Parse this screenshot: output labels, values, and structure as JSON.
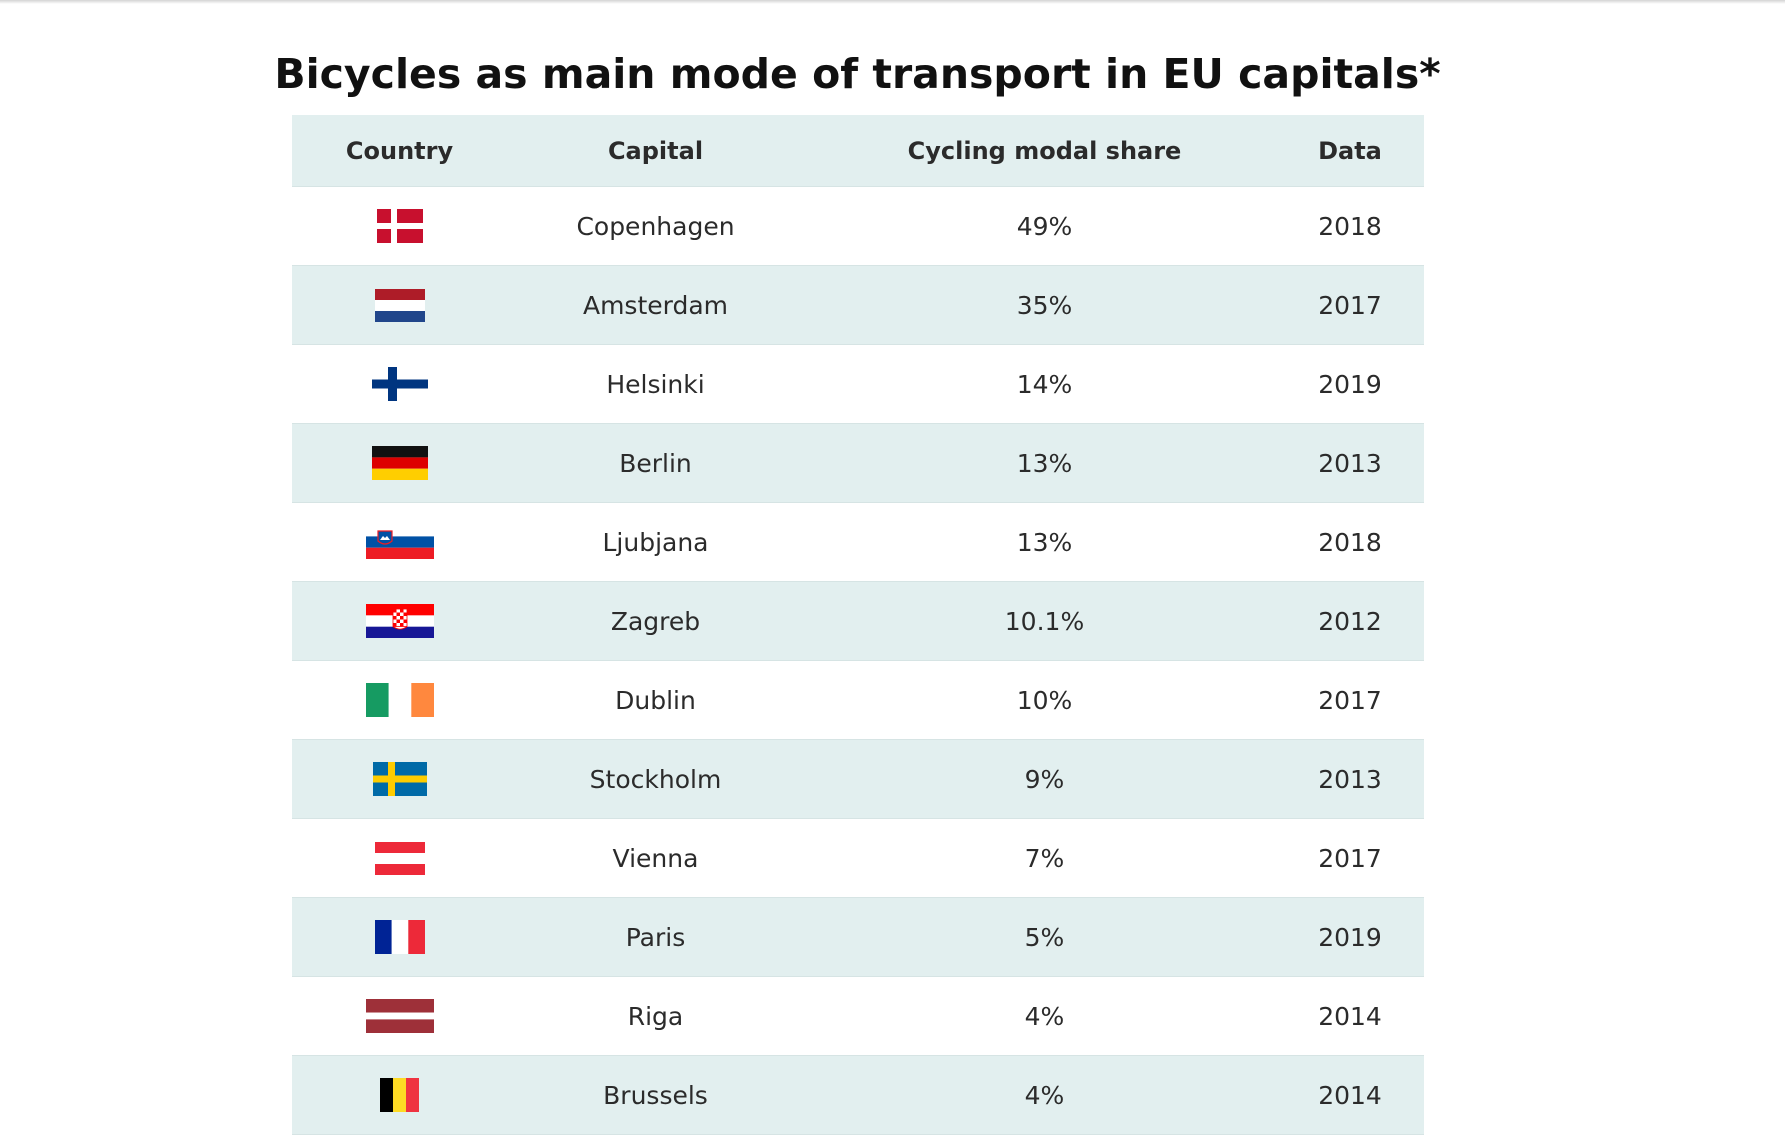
{
  "chart_data": {
    "type": "table",
    "title": "Bicycles as main mode of transport in EU capitals*",
    "columns": [
      "Country",
      "Capital",
      "Cycling modal share",
      "Data"
    ],
    "rows": [
      {
        "country_flag": "denmark",
        "capital": "Copenhagen",
        "share": "49%",
        "share_value": 49,
        "year": "2018"
      },
      {
        "country_flag": "netherlands",
        "capital": "Amsterdam",
        "share": "35%",
        "share_value": 35,
        "year": "2017"
      },
      {
        "country_flag": "finland",
        "capital": "Helsinki",
        "share": "14%",
        "share_value": 14,
        "year": "2019"
      },
      {
        "country_flag": "germany",
        "capital": "Berlin",
        "share": "13%",
        "share_value": 13,
        "year": "2013"
      },
      {
        "country_flag": "slovenia",
        "capital": "Ljubjana",
        "share": "13%",
        "share_value": 13,
        "year": "2018"
      },
      {
        "country_flag": "croatia",
        "capital": "Zagreb",
        "share": "10.1%",
        "share_value": 10.1,
        "year": "2012"
      },
      {
        "country_flag": "ireland",
        "capital": "Dublin",
        "share": "10%",
        "share_value": 10,
        "year": "2017"
      },
      {
        "country_flag": "sweden",
        "capital": "Stockholm",
        "share": "9%",
        "share_value": 9,
        "year": "2013"
      },
      {
        "country_flag": "austria",
        "capital": "Vienna",
        "share": "7%",
        "share_value": 7,
        "year": "2017"
      },
      {
        "country_flag": "france",
        "capital": "Paris",
        "share": "5%",
        "share_value": 5,
        "year": "2019"
      },
      {
        "country_flag": "latvia",
        "capital": "Riga",
        "share": "4%",
        "share_value": 4,
        "year": "2014"
      },
      {
        "country_flag": "belgium",
        "capital": "Brussels",
        "share": "4%",
        "share_value": 4,
        "year": "2014"
      }
    ]
  },
  "colors": {
    "header_bg": "#e2efef",
    "row_alt_bg": "#e2efef",
    "text": "#2b2b2b",
    "title": "#111111"
  }
}
